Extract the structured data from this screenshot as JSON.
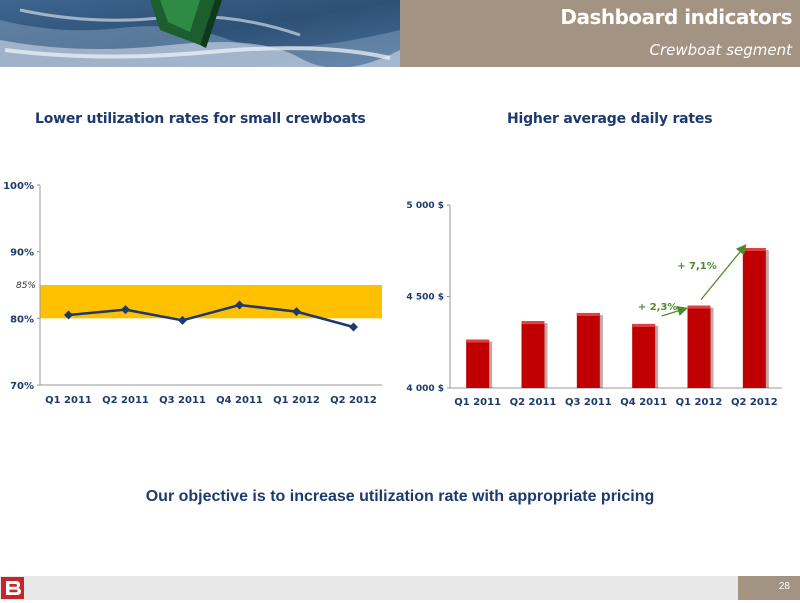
{
  "header": {
    "title": "Dashboard indicators",
    "subtitle": "Crewboat segment"
  },
  "charts": {
    "utilization": {
      "title": "Lower utilization rates for small crewboats"
    },
    "daily_rates": {
      "title": "Higher average daily rates"
    }
  },
  "chart_data": [
    {
      "type": "line",
      "title": "Lower utilization rates for small crewboats",
      "categories": [
        "Q1 2011",
        "Q2 2011",
        "Q3 2011",
        "Q4 2011",
        "Q1 2012",
        "Q2 2012"
      ],
      "series": [
        {
          "values": [
            80.5,
            81.3,
            79.7,
            82.0,
            81.0,
            78.7
          ]
        }
      ],
      "ylim": [
        70,
        100
      ],
      "yticks": [
        "70%",
        "80%",
        "90%",
        "100%"
      ],
      "target_band": {
        "from": 80,
        "to": 85,
        "label": "85%"
      },
      "colors": {
        "line": "#1d3a6e",
        "band": "#ffc000"
      }
    },
    {
      "type": "bar",
      "title": "Higher average daily rates",
      "categories": [
        "Q1 2011",
        "Q2 2011",
        "Q3 2011",
        "Q4 2011",
        "Q1 2012",
        "Q2 2012"
      ],
      "values": [
        4265,
        4365,
        4410,
        4350,
        4450,
        4765
      ],
      "ylim": [
        4000,
        5000
      ],
      "yticks": [
        "4 000 $",
        "4 500 $",
        "5 000 $"
      ],
      "annotations": [
        "+ 2,3%",
        "+ 7,1%"
      ],
      "colors": {
        "bar": "#c00000",
        "annotation": "#4f8a2d"
      }
    }
  ],
  "objective": "Our objective is to increase utilization rate with appropriate pricing",
  "footer": {
    "logo_letter": "B",
    "page_number": "28"
  }
}
